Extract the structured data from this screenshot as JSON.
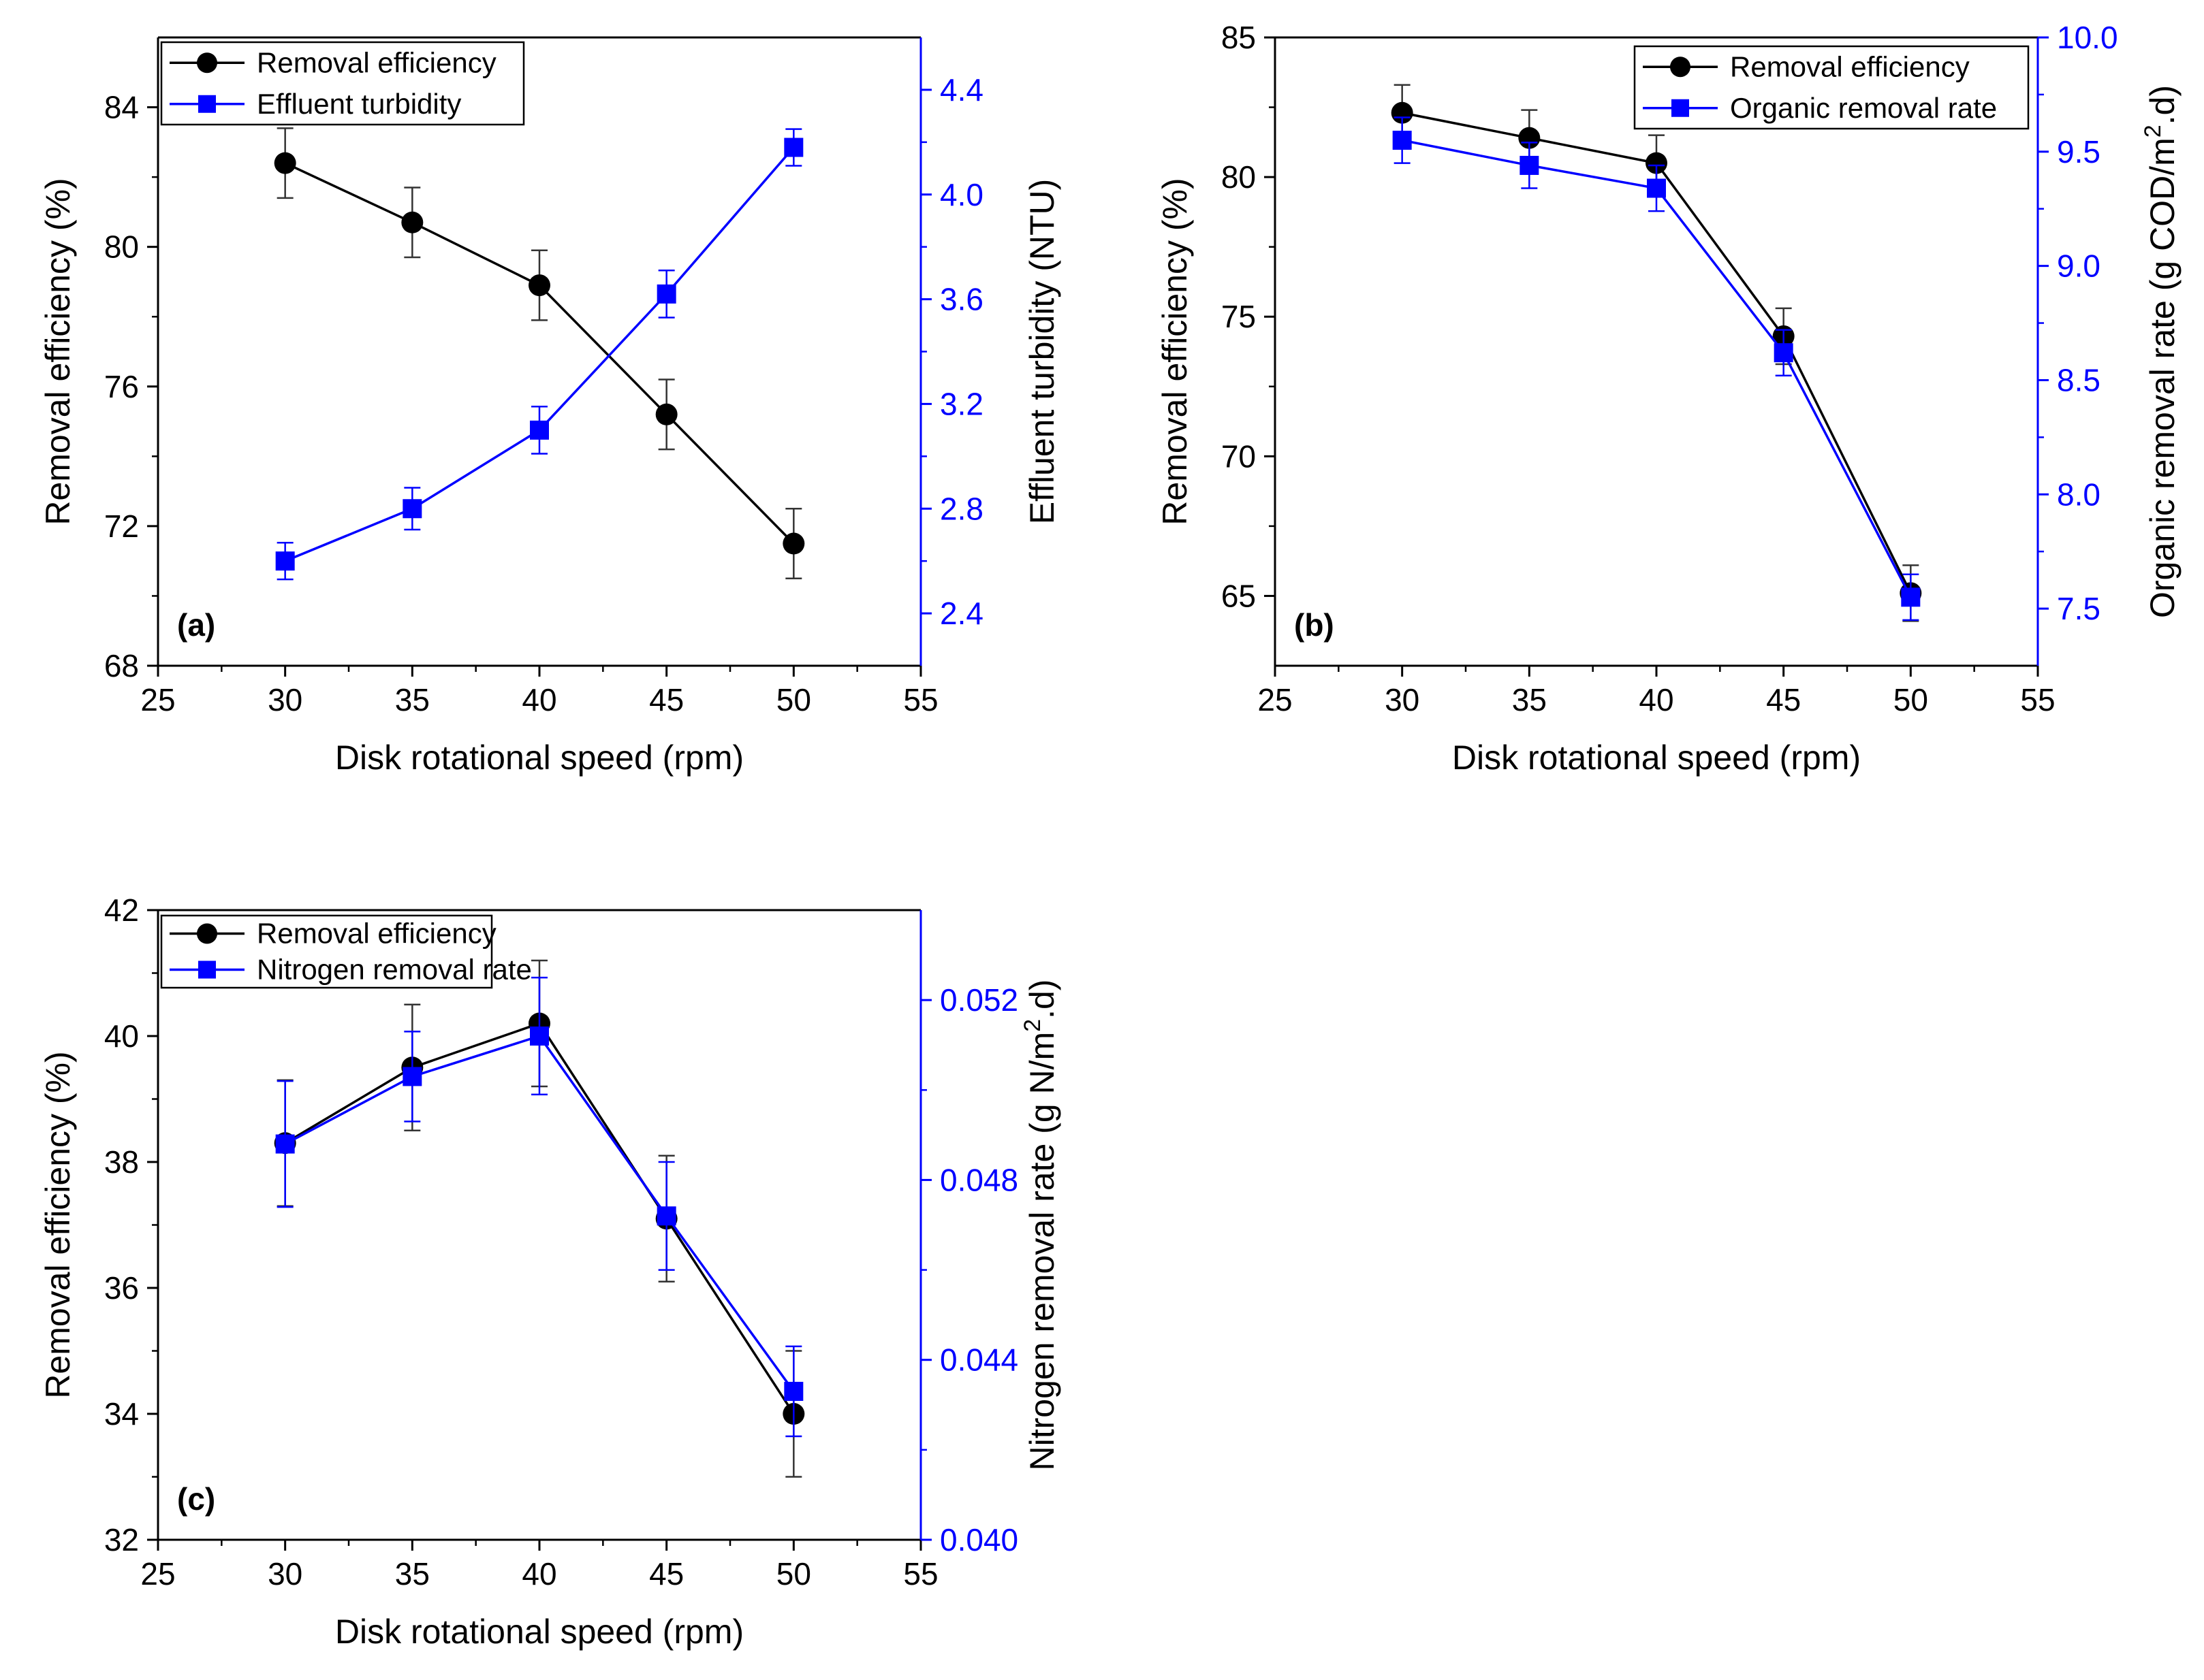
{
  "chart_data": [
    {
      "id": "a",
      "type": "line",
      "panel_label": "(a)",
      "xlabel": "Disk rotational speed (rpm)",
      "ylabel": "Removal efficiency (%)",
      "y2label": "Effluent turbidity (NTU)",
      "xlim": [
        25,
        55
      ],
      "xticks": [
        25,
        30,
        35,
        40,
        45,
        50,
        55
      ],
      "ylim": [
        68,
        86
      ],
      "yticks": [
        68,
        72,
        76,
        80,
        84
      ],
      "y2lim": [
        2.2,
        4.6
      ],
      "y2ticks": [
        2.4,
        2.8,
        3.2,
        3.6,
        4.0,
        4.4
      ],
      "legend_position": "top-left",
      "x": [
        30,
        35,
        40,
        45,
        50
      ],
      "series": [
        {
          "name": "Removal efficiency",
          "axis": "left",
          "color": "#000000",
          "marker": "circle",
          "values": [
            82.4,
            80.7,
            78.9,
            75.2,
            71.5
          ],
          "errors": [
            1.0,
            1.0,
            1.0,
            1.0,
            1.0
          ]
        },
        {
          "name": "Effluent turbidity",
          "axis": "right",
          "color": "#0000ff",
          "marker": "square",
          "values": [
            2.6,
            2.8,
            3.1,
            3.62,
            4.18
          ],
          "errors": [
            0.07,
            0.08,
            0.09,
            0.09,
            0.07
          ]
        }
      ]
    },
    {
      "id": "b",
      "type": "line",
      "panel_label": "(b)",
      "xlabel": "Disk rotational speed (rpm)",
      "ylabel": "Removal efficiency (%)",
      "y2label_parts": [
        "Organic removal rate (g COD/m",
        "2",
        ".d)"
      ],
      "xlim": [
        25,
        55
      ],
      "xticks": [
        25,
        30,
        35,
        40,
        45,
        50,
        55
      ],
      "ylim": [
        62.5,
        85
      ],
      "yticks": [
        65,
        70,
        75,
        80,
        85
      ],
      "y2lim": [
        7.25,
        10.0
      ],
      "y2ticks": [
        7.5,
        8.0,
        8.5,
        9.0,
        9.5,
        10.0
      ],
      "legend_position": "top-right",
      "x": [
        30,
        35,
        40,
        45,
        50
      ],
      "series": [
        {
          "name": "Removal efficiency",
          "axis": "left",
          "color": "#000000",
          "marker": "circle",
          "values": [
            82.3,
            81.4,
            80.5,
            74.3,
            65.1
          ],
          "errors": [
            1.0,
            1.0,
            1.0,
            1.0,
            1.0
          ]
        },
        {
          "name": "Organic removal rate",
          "axis": "right",
          "color": "#0000ff",
          "marker": "square",
          "values": [
            9.55,
            9.44,
            9.34,
            8.62,
            7.55
          ],
          "errors": [
            0.1,
            0.1,
            0.1,
            0.1,
            0.1
          ]
        }
      ]
    },
    {
      "id": "c",
      "type": "line",
      "panel_label": "(c)",
      "xlabel": "Disk rotational speed (rpm)",
      "ylabel": "Removal efficiency (%)",
      "y2label_parts": [
        "Nitrogen removal rate (g N/m",
        "2",
        ".d)"
      ],
      "xlim": [
        25,
        55
      ],
      "xticks": [
        25,
        30,
        35,
        40,
        45,
        50,
        55
      ],
      "ylim": [
        32,
        42
      ],
      "yticks": [
        32,
        34,
        36,
        38,
        40,
        42
      ],
      "y2lim": [
        0.04,
        0.054
      ],
      "y2ticks": [
        0.04,
        0.044,
        0.048,
        0.052
      ],
      "legend_position": "top-left",
      "x": [
        30,
        35,
        40,
        45,
        50
      ],
      "series": [
        {
          "name": "Removal efficiency",
          "axis": "left",
          "color": "#000000",
          "marker": "circle",
          "values": [
            38.3,
            39.5,
            40.2,
            37.1,
            34.0
          ],
          "errors": [
            1.0,
            1.0,
            1.0,
            1.0,
            1.0
          ]
        },
        {
          "name": "Nitrogen removal rate",
          "axis": "right",
          "color": "#0000ff",
          "marker": "square",
          "values": [
            0.0488,
            0.0503,
            0.0512,
            0.0472,
            0.0433
          ],
          "errors": [
            0.0014,
            0.001,
            0.0013,
            0.0012,
            0.001
          ]
        }
      ]
    }
  ]
}
